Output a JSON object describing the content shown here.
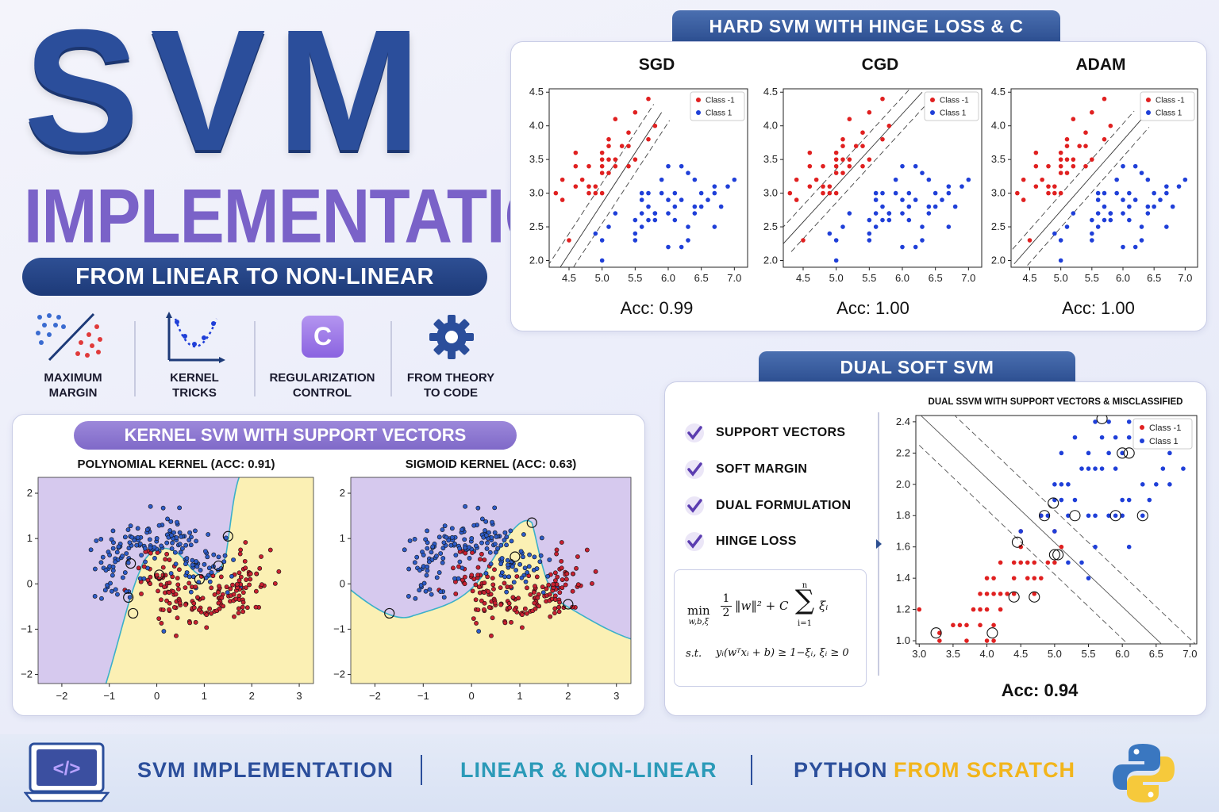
{
  "title": {
    "main": "SVM",
    "sub": "IMPLEMENTATION",
    "banner": "FROM LINEAR TO NON-LINEAR"
  },
  "features": [
    {
      "label_1": "MAXIMUM",
      "label_2": "MARGIN",
      "icon": "margin-scatter-icon"
    },
    {
      "label_1": "KERNEL",
      "label_2": "TRICKS",
      "icon": "kernel-curve-icon"
    },
    {
      "label_1": "REGULARIZATION",
      "label_2": "CONTROL",
      "icon": "c-badge-icon",
      "badge": "C"
    },
    {
      "label_1": "FROM THEORY",
      "label_2": "TO CODE",
      "icon": "gear-icon"
    }
  ],
  "hard_svm": {
    "header": "HARD SVM WITH HINGE LOSS & C",
    "legend": [
      "Class -1",
      "Class 1"
    ],
    "x_ticks": [
      "4.5",
      "5.0",
      "5.5",
      "6.0",
      "6.5",
      "7.0"
    ],
    "y_ticks": [
      "2.0",
      "2.5",
      "3.0",
      "3.5",
      "4.0",
      "4.5"
    ],
    "plots": [
      {
        "title": "SGD",
        "acc": "Acc: 0.99"
      },
      {
        "title": "CGD",
        "acc": "Acc: 1.00"
      },
      {
        "title": "ADAM",
        "acc": "Acc: 1.00"
      }
    ]
  },
  "kernel_svm": {
    "header": "KERNEL SVM WITH SUPPORT VECTORS",
    "x_ticks": [
      "−2",
      "−1",
      "0",
      "1",
      "2",
      "3"
    ],
    "y_ticks": [
      "2",
      "1",
      "0",
      "−1",
      "−2"
    ],
    "plots": [
      {
        "title": "POLYNOMIAL KERNEL (ACC: 0.91)"
      },
      {
        "title": "SIGMOID KERNEL (ACC: 0.63)"
      }
    ]
  },
  "dual_svm": {
    "header": "DUAL SOFT SVM",
    "checklist": [
      "SUPPORT VECTORS",
      "SOFT MARGIN",
      "DUAL FORMULATION",
      "HINGE LOSS"
    ],
    "formula": {
      "min": "min",
      "min_sub": "w,b,ξ",
      "frac_num": "1",
      "frac_den": "2",
      "norm": "‖w‖² + C",
      "sum_top": "n",
      "sum_bot": "i=1",
      "xi": "ξᵢ",
      "st": "s.t.",
      "constraint": "yᵢ(wᵀxᵢ + b) ≥ 1−ξᵢ, ξᵢ ≥ 0"
    },
    "plot_title": "DUAL SSVM WITH SUPPORT VECTORS & MISCLASSIFIED",
    "legend": [
      "Class -1",
      "Class 1"
    ],
    "x_ticks": [
      "3.0",
      "3.5",
      "4.0",
      "4.5",
      "5.0",
      "5.5",
      "6.0",
      "6.5",
      "7.0"
    ],
    "y_ticks": [
      "2.4",
      "2.2",
      "2.0",
      "1.8",
      "1.6",
      "1.4",
      "1.2",
      "1.0"
    ],
    "acc": "Acc: 0.94"
  },
  "footer": {
    "item1": "SVM IMPLEMENTATION",
    "item2": "LINEAR & NON-LINEAR",
    "item3a": "PYTHON",
    "item3b": "FROM SCRATCH",
    "code_icon": "</>"
  },
  "colors": {
    "red": "#e02020",
    "blue": "#1f3fd8",
    "title_blue": "#2a4d9a",
    "title_purple": "#7a62c8"
  }
}
